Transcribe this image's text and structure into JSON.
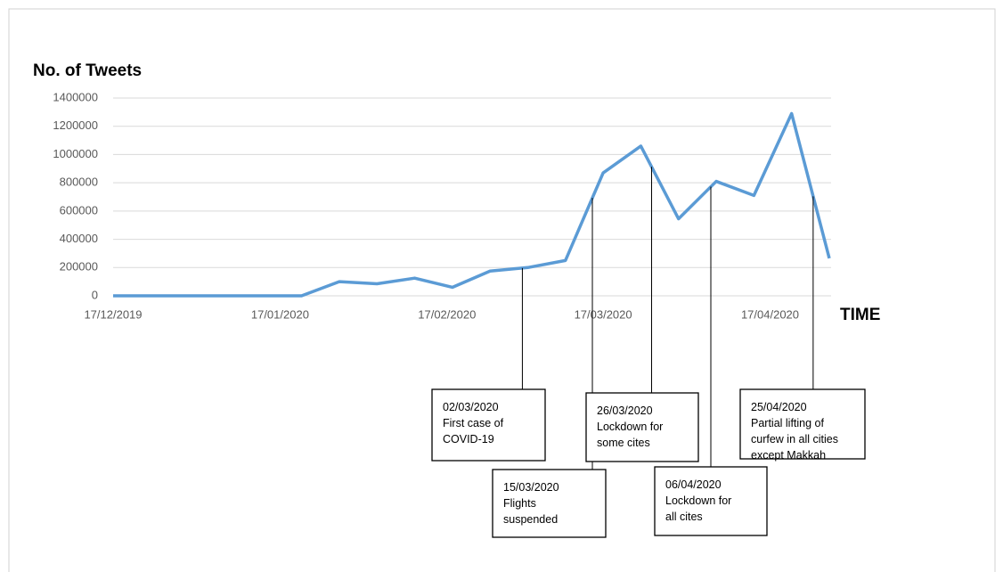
{
  "chart_data": {
    "type": "line",
    "title": "No. of Tweets",
    "x_label": "TIME",
    "x": [
      "17/12/2019",
      "24/12/2019",
      "31/12/2019",
      "07/01/2020",
      "14/01/2020",
      "21/01/2020",
      "28/01/2020",
      "04/02/2020",
      "11/02/2020",
      "18/02/2020",
      "25/02/2020",
      "03/03/2020",
      "10/03/2020",
      "17/03/2020",
      "24/03/2020",
      "31/03/2020",
      "07/04/2020",
      "14/04/2020",
      "21/04/2020",
      "28/04/2020"
    ],
    "series": [
      {
        "name": "Tweets",
        "color": "#5b9bd5",
        "values": [
          0,
          0,
          0,
          0,
          0,
          0,
          100000,
          85000,
          125000,
          60000,
          175000,
          200000,
          250000,
          870000,
          1060000,
          545000,
          810000,
          710000,
          1290000,
          265000
        ]
      }
    ],
    "xlim": [
      "17/12/2019",
      "28/04/2020"
    ],
    "xticks": [
      "17/12/2019",
      "17/01/2020",
      "17/02/2020",
      "17/03/2020",
      "17/04/2020"
    ],
    "ylim": [
      0,
      1400000
    ],
    "yticks": [
      0,
      200000,
      400000,
      600000,
      800000,
      1000000,
      1200000,
      1400000
    ],
    "grid": true,
    "annotations": [
      {
        "date": "02/03/2020",
        "lines": [
          "First case of",
          "COVID-19"
        ]
      },
      {
        "date": "15/03/2020",
        "lines": [
          "Flights",
          "suspended"
        ]
      },
      {
        "date": "26/03/2020",
        "lines": [
          "Lockdown for",
          "some cites"
        ]
      },
      {
        "date": "06/04/2020",
        "lines": [
          "Lockdown for",
          "all cites"
        ]
      },
      {
        "date": "25/04/2020",
        "lines": [
          "Partial lifting of",
          "curfew in all cities",
          "except Makkah"
        ]
      }
    ]
  }
}
